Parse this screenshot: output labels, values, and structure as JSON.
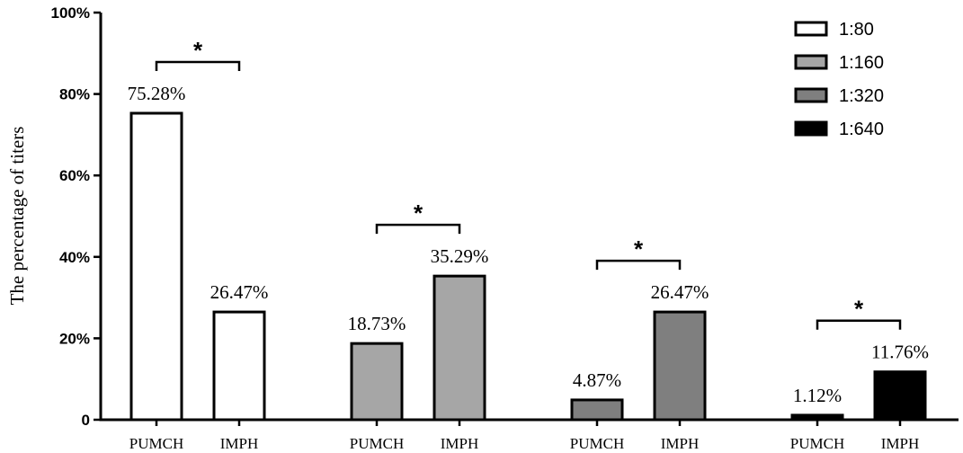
{
  "chart_data": {
    "type": "bar",
    "ylabel": "The percentage of titers",
    "ylim": [
      0,
      100
    ],
    "yticks": [
      {
        "value": 0,
        "label": "0"
      },
      {
        "value": 20,
        "label": "20%"
      },
      {
        "value": 40,
        "label": "40%"
      },
      {
        "value": 60,
        "label": "60%"
      },
      {
        "value": 80,
        "label": "80%"
      },
      {
        "value": 100,
        "label": "100%"
      }
    ],
    "legend_position": "top-right",
    "groups": [
      {
        "name": "1:80",
        "color": "#ffffff",
        "bars": [
          {
            "category": "PUMCH",
            "value": 75.28,
            "label": "75.28%"
          },
          {
            "category": "IMPH",
            "value": 26.47,
            "label": "26.47%"
          }
        ],
        "significance": "*"
      },
      {
        "name": "1:160",
        "color": "#a6a6a6",
        "bars": [
          {
            "category": "PUMCH",
            "value": 18.73,
            "label": "18.73%"
          },
          {
            "category": "IMPH",
            "value": 35.29,
            "label": "35.29%"
          }
        ],
        "significance": "*"
      },
      {
        "name": "1:320",
        "color": "#7f7f7f",
        "bars": [
          {
            "category": "PUMCH",
            "value": 4.87,
            "label": "4.87%"
          },
          {
            "category": "IMPH",
            "value": 26.47,
            "label": "26.47%"
          }
        ],
        "significance": "*"
      },
      {
        "name": "1:640",
        "color": "#000000",
        "bars": [
          {
            "category": "PUMCH",
            "value": 1.12,
            "label": "1.12%"
          },
          {
            "category": "IMPH",
            "value": 11.76,
            "label": "11.76%"
          }
        ],
        "significance": "*"
      }
    ]
  }
}
